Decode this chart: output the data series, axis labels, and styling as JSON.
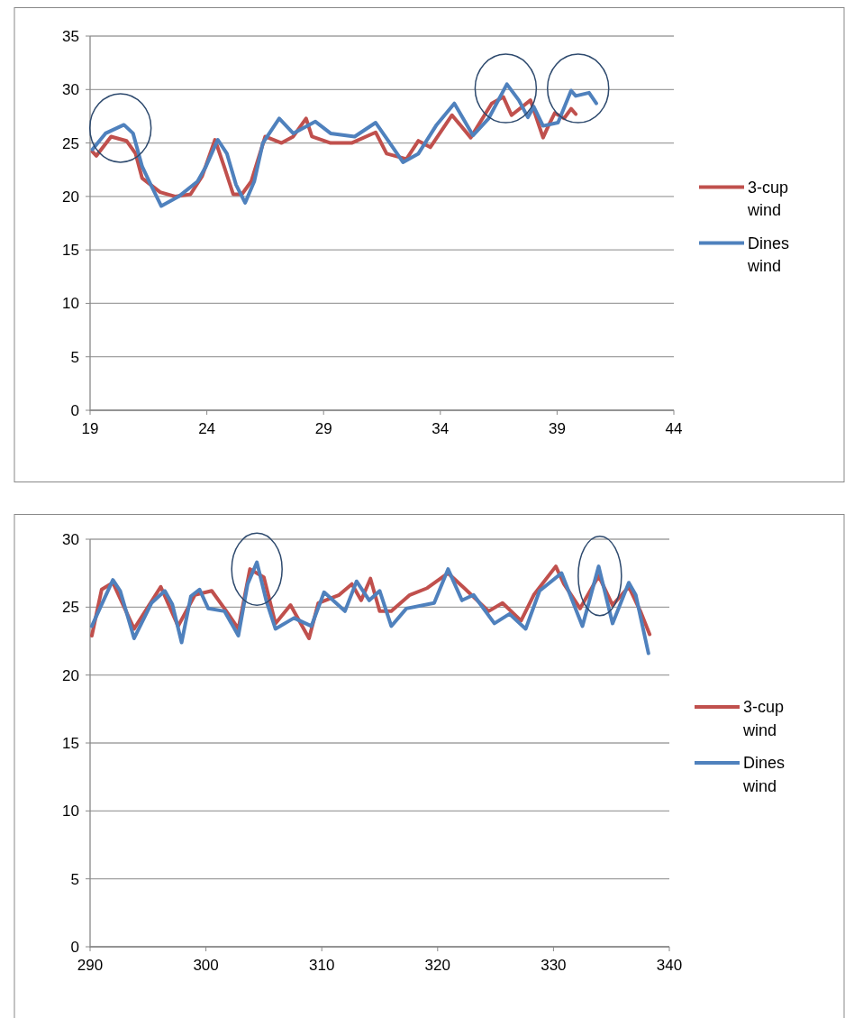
{
  "chart_data": [
    {
      "type": "line",
      "xlim": [
        19,
        44
      ],
      "xticks": [
        19,
        24,
        29,
        34,
        39,
        44
      ],
      "ylim": [
        0,
        35
      ],
      "yticks": [
        0,
        5,
        10,
        15,
        20,
        25,
        30,
        35
      ],
      "grid": "y",
      "legend": "right",
      "marker": "none",
      "line_style": "solid",
      "series": [
        {
          "name": "3-cup wind",
          "color": "#c0504d",
          "x": [
            19.1,
            19.27,
            19.9,
            20.56,
            20.95,
            21.23,
            22.0,
            22.64,
            23.3,
            23.8,
            24.35,
            24.74,
            25.13,
            25.5,
            25.9,
            26.5,
            27.2,
            27.7,
            28.25,
            28.5,
            29.3,
            30.2,
            31.23,
            31.7,
            32.55,
            33.06,
            33.57,
            34.5,
            35.3,
            36.2,
            36.7,
            37.05,
            37.86,
            38.4,
            38.65,
            38.9,
            39.3,
            39.6,
            39.8
          ],
          "values": [
            24.2,
            23.8,
            25.6,
            25.2,
            24.0,
            21.7,
            20.4,
            20.0,
            20.2,
            21.9,
            25.3,
            22.8,
            20.2,
            20.2,
            21.4,
            25.6,
            25.0,
            25.6,
            27.3,
            25.6,
            25.0,
            25.0,
            26.0,
            24.0,
            23.5,
            25.2,
            24.6,
            27.6,
            25.5,
            28.7,
            29.3,
            27.6,
            29.0,
            25.5,
            26.7,
            27.8,
            27.3,
            28.2,
            27.7
          ]
        },
        {
          "name": "Dines wind",
          "color": "#4f81bd",
          "x": [
            19.1,
            19.66,
            20.45,
            20.84,
            21.23,
            21.6,
            22.05,
            22.8,
            23.6,
            23.96,
            24.47,
            24.86,
            25.25,
            25.64,
            26.03,
            26.4,
            27.1,
            27.7,
            28.65,
            29.3,
            30.33,
            31.23,
            31.77,
            32.4,
            33.06,
            33.84,
            34.6,
            35.4,
            36.07,
            36.85,
            37.36,
            37.75,
            38.0,
            38.4,
            39.04,
            39.6,
            39.8,
            40.37,
            40.68
          ],
          "values": [
            24.4,
            25.9,
            26.7,
            25.9,
            22.8,
            21.1,
            19.1,
            20.0,
            21.4,
            22.8,
            25.3,
            24.0,
            21.1,
            19.4,
            21.4,
            25.0,
            27.3,
            25.9,
            27.0,
            25.9,
            25.6,
            26.9,
            25.2,
            23.2,
            24.0,
            26.7,
            28.7,
            25.7,
            27.3,
            30.5,
            29.0,
            27.4,
            28.4,
            26.6,
            26.9,
            29.9,
            29.4,
            29.7,
            28.7
          ]
        }
      ]
    },
    {
      "type": "line",
      "xlim": [
        290,
        340
      ],
      "xticks": [
        290,
        300,
        310,
        320,
        330,
        340
      ],
      "ylim": [
        0,
        30
      ],
      "yticks": [
        0,
        5,
        10,
        15,
        20,
        25,
        30
      ],
      "grid": "y",
      "legend": "right",
      "marker": "none",
      "line_style": "solid",
      "series": [
        {
          "name": "3-cup wind",
          "color": "#c0504d",
          "x": [
            290.15,
            291.0,
            291.97,
            293.8,
            296.1,
            297.6,
            299.05,
            300.5,
            301.6,
            302.8,
            303.8,
            305.0,
            306.0,
            307.3,
            308.9,
            309.7,
            311.5,
            312.6,
            313.4,
            314.2,
            315.0,
            316.0,
            317.6,
            319.1,
            320.9,
            322.3,
            324.4,
            325.6,
            327.2,
            328.3,
            330.2,
            330.9,
            332.3,
            333.9,
            335.1,
            336.5,
            337.5,
            338.3
          ],
          "values": [
            22.9,
            26.3,
            26.8,
            23.4,
            26.5,
            23.6,
            25.9,
            26.2,
            24.9,
            23.4,
            27.8,
            27.2,
            23.8,
            25.15,
            22.7,
            25.3,
            25.9,
            26.7,
            25.5,
            27.1,
            24.7,
            24.7,
            25.9,
            26.4,
            27.5,
            26.4,
            24.7,
            25.3,
            24.0,
            25.9,
            28.0,
            26.7,
            24.9,
            27.3,
            25.15,
            26.5,
            24.7,
            23.0
          ]
        },
        {
          "name": "Dines wind",
          "color": "#4f81bd",
          "x": [
            290.15,
            291.0,
            291.97,
            292.6,
            293.8,
            295.3,
            296.45,
            297.1,
            297.9,
            298.7,
            299.45,
            300.2,
            301.6,
            302.8,
            303.6,
            304.4,
            305.2,
            306.0,
            307.6,
            309.1,
            310.2,
            312.0,
            313.0,
            314.1,
            315.0,
            316.0,
            317.3,
            319.7,
            320.9,
            322.1,
            323.1,
            324.9,
            326.2,
            327.6,
            328.8,
            330.7,
            332.5,
            333.9,
            335.1,
            336.5,
            337.1,
            338.2
          ],
          "values": [
            23.6,
            25.2,
            27.0,
            26.2,
            22.7,
            25.3,
            26.2,
            25.2,
            22.4,
            25.8,
            26.3,
            24.9,
            24.7,
            22.9,
            26.7,
            28.3,
            25.5,
            23.4,
            24.2,
            23.6,
            26.1,
            24.7,
            26.9,
            25.5,
            26.2,
            23.6,
            24.9,
            25.3,
            27.8,
            25.5,
            25.9,
            23.8,
            24.5,
            23.4,
            26.2,
            27.5,
            23.6,
            28.0,
            23.8,
            26.8,
            25.9,
            21.6
          ]
        }
      ]
    }
  ]
}
